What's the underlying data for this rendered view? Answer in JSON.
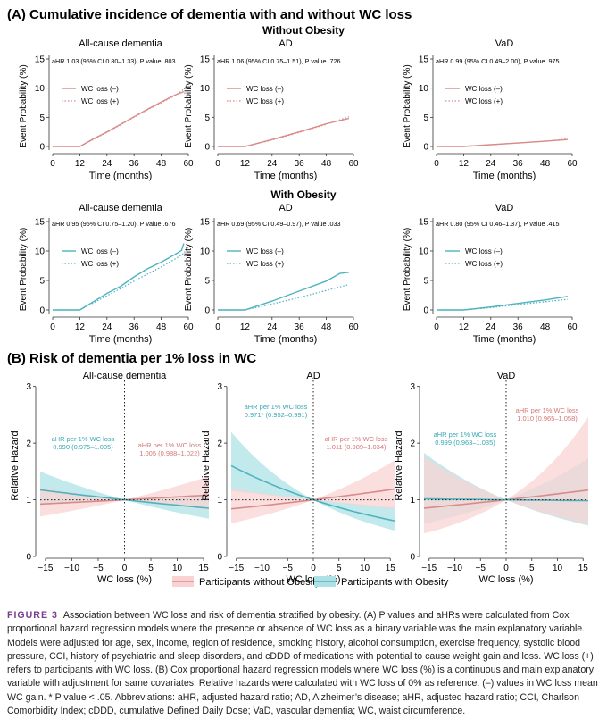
{
  "sectionA": {
    "title": "(A) Cumulative incidence of dementia with and without WC loss",
    "row1_title": "Without Obesity",
    "row2_title": "With Obesity",
    "ylabel": "Event Probability (%)",
    "xlabel": "Time (months)",
    "legend_neg": "WC loss (–)",
    "legend_pos": "WC loss (+)"
  },
  "sectionB": {
    "title": "(B) Risk of dementia per 1% loss in WC",
    "ylabel": "Relative Hazard",
    "xlabel": "WC loss (%)",
    "legend_no_obesity": "Participants without Obesity",
    "legend_obesity": "Participants with Obesity"
  },
  "colors": {
    "no_obesity": "#d98a8a",
    "obesity": "#4fb3bf",
    "no_obesity_band": "#f9d3d3",
    "obesity_band": "#aee1e6"
  },
  "chart_data": [
    {
      "type": "line",
      "row": "Without Obesity",
      "title": "All-cause dementia",
      "annotation": "aHR 1.03 (95% CI 0.80–1.33), P value .803",
      "x": [
        0,
        12,
        24,
        36,
        48,
        60
      ],
      "xlim": [
        0,
        60
      ],
      "ylim": [
        0,
        15
      ],
      "yticks": [
        0,
        5,
        10,
        15
      ],
      "series": [
        {
          "name": "WC loss (–)",
          "x": [
            0,
            12,
            18,
            24,
            30,
            36,
            42,
            48,
            54,
            58
          ],
          "values": [
            0,
            0,
            1.3,
            2.5,
            3.8,
            5.1,
            6.4,
            7.6,
            8.8,
            9.4
          ]
        },
        {
          "name": "WC loss (+)",
          "x": [
            0,
            12,
            18,
            24,
            30,
            36,
            42,
            48,
            54,
            58
          ],
          "values": [
            0,
            0,
            1.2,
            2.4,
            3.7,
            5.0,
            6.3,
            7.5,
            8.7,
            9.8
          ]
        }
      ]
    },
    {
      "type": "line",
      "row": "Without Obesity",
      "title": "AD",
      "annotation": "aHR 1.06 (95% CI 0.75–1.51), P value .726",
      "xlim": [
        0,
        60
      ],
      "ylim": [
        0,
        15
      ],
      "series": [
        {
          "name": "WC loss (–)",
          "x": [
            0,
            12,
            24,
            36,
            48,
            58
          ],
          "values": [
            0,
            0,
            1.2,
            2.5,
            3.9,
            4.8
          ]
        },
        {
          "name": "WC loss (+)",
          "x": [
            0,
            12,
            24,
            36,
            48,
            58
          ],
          "values": [
            0,
            0,
            1.1,
            2.4,
            3.8,
            5.1
          ]
        }
      ]
    },
    {
      "type": "line",
      "row": "Without Obesity",
      "title": "VaD",
      "annotation": "aHR 0.99 (95% CI 0.49–2.00), P value .975",
      "xlim": [
        0,
        60
      ],
      "ylim": [
        0,
        15
      ],
      "series": [
        {
          "name": "WC loss (–)",
          "x": [
            0,
            12,
            24,
            36,
            48,
            58
          ],
          "values": [
            0,
            0,
            0.3,
            0.6,
            0.9,
            1.2
          ]
        },
        {
          "name": "WC loss (+)",
          "x": [
            0,
            12,
            24,
            36,
            48,
            58
          ],
          "values": [
            0,
            0,
            0.3,
            0.6,
            0.9,
            1.3
          ]
        }
      ]
    },
    {
      "type": "line",
      "row": "With Obesity",
      "title": "All-cause dementia",
      "annotation": "aHR 0.95 (95% CI 0.75–1.20), P value .676",
      "xlim": [
        0,
        60
      ],
      "ylim": [
        0,
        15
      ],
      "series": [
        {
          "name": "WC loss (–)",
          "x": [
            0,
            12,
            18,
            24,
            30,
            36,
            42,
            48,
            54,
            57,
            58
          ],
          "values": [
            0,
            0,
            1.4,
            2.8,
            4.0,
            5.6,
            7.0,
            8.1,
            9.4,
            10.1,
            11.3
          ]
        },
        {
          "name": "WC loss (+)",
          "x": [
            0,
            12,
            18,
            24,
            30,
            36,
            42,
            48,
            54,
            58
          ],
          "values": [
            0,
            0,
            1.2,
            2.4,
            3.6,
            4.9,
            6.1,
            7.3,
            8.6,
            9.6
          ]
        }
      ]
    },
    {
      "type": "line",
      "row": "With Obesity",
      "title": "AD",
      "annotation": "aHR 0.69 (95% CI 0.49–0.97), P value .033",
      "xlim": [
        0,
        60
      ],
      "ylim": [
        0,
        15
      ],
      "series": [
        {
          "name": "WC loss (–)",
          "x": [
            0,
            12,
            24,
            36,
            48,
            54,
            58
          ],
          "values": [
            0,
            0,
            1.5,
            3.2,
            4.9,
            6.2,
            6.4
          ]
        },
        {
          "name": "WC loss (+)",
          "x": [
            0,
            12,
            24,
            36,
            48,
            58
          ],
          "values": [
            0,
            0,
            1.0,
            2.1,
            3.3,
            4.3
          ]
        }
      ]
    },
    {
      "type": "line",
      "row": "With Obesity",
      "title": "VaD",
      "annotation": "aHR 0.80 (95% CI 0.46–1.37), P value .415",
      "xlim": [
        0,
        60
      ],
      "ylim": [
        0,
        15
      ],
      "series": [
        {
          "name": "WC loss (–)",
          "x": [
            0,
            12,
            24,
            36,
            48,
            58
          ],
          "values": [
            0,
            0,
            0.5,
            1.1,
            1.7,
            2.3
          ]
        },
        {
          "name": "WC loss (+)",
          "x": [
            0,
            12,
            24,
            36,
            48,
            58
          ],
          "values": [
            0,
            0,
            0.4,
            0.9,
            1.4,
            1.8
          ]
        }
      ]
    },
    {
      "type": "line",
      "title": "All-cause dementia",
      "xlim": [
        -16,
        16
      ],
      "ylim": [
        0,
        3.2
      ],
      "xticks": [
        -15,
        -10,
        -5,
        0,
        5,
        10,
        15
      ],
      "yticks": [
        0,
        1,
        2,
        3
      ],
      "annotations": [
        {
          "series": "obesity",
          "text": "aHR per 1% WC loss",
          "ci": "0.990 (0.975–1.005)"
        },
        {
          "series": "no_obesity",
          "text": "aHR per 1% WC loss",
          "ci": "1.005 (0.988–1.022)"
        }
      ],
      "series": [
        {
          "name": "Participants without Obesity",
          "hr_per_1pct": 1.005,
          "ci": [
            0.988,
            1.022
          ]
        },
        {
          "name": "Participants with Obesity",
          "hr_per_1pct": 0.99,
          "ci": [
            0.975,
            1.005
          ]
        }
      ]
    },
    {
      "type": "line",
      "title": "AD",
      "xlim": [
        -16,
        16
      ],
      "ylim": [
        0,
        3.2
      ],
      "annotations": [
        {
          "series": "obesity",
          "text": "aHR per 1% WC loss",
          "ci": "0.971* (0.952–0.991)"
        },
        {
          "series": "no_obesity",
          "text": "aHR per 1% WC loss",
          "ci": "1.011 (0.989–1.034)"
        }
      ],
      "series": [
        {
          "name": "Participants without Obesity",
          "hr_per_1pct": 1.011,
          "ci": [
            0.989,
            1.034
          ]
        },
        {
          "name": "Participants with Obesity",
          "hr_per_1pct": 0.971,
          "ci": [
            0.952,
            0.991
          ]
        }
      ]
    },
    {
      "type": "line",
      "title": "VaD",
      "xlim": [
        -16,
        16
      ],
      "ylim": [
        0,
        3.2
      ],
      "annotations": [
        {
          "series": "obesity",
          "text": "aHR per 1% WC loss",
          "ci": "0.999 (0.963–1.035)"
        },
        {
          "series": "no_obesity",
          "text": "aHR per 1% WC loss",
          "ci": "1.010 (0.965–1.058)"
        }
      ],
      "series": [
        {
          "name": "Participants without Obesity",
          "hr_per_1pct": 1.01,
          "ci": [
            0.965,
            1.058
          ]
        },
        {
          "name": "Participants with Obesity",
          "hr_per_1pct": 0.999,
          "ci": [
            0.963,
            1.035
          ]
        }
      ]
    }
  ],
  "caption": {
    "label": "FIGURE 3",
    "text": "Association between WC loss and risk of dementia stratified by obesity. (A) P values and aHRs were calculated from Cox proportional hazard regression models where the presence or absence of WC loss as a binary variable was the main explanatory variable. Models were adjusted for age, sex, income, region of residence, smoking history, alcohol consumption, exercise frequency, systolic blood pressure, CCI, history of psychiatric and sleep disorders, and cDDD of medications with potential to cause weight gain and loss. WC loss (+) refers to participants with WC loss. (B) Cox proportional hazard regression models where WC loss (%) is a continuous and main explanatory variable with adjustment for same covariates. Relative hazards were calculated with WC loss of 0% as reference. (–) values in WC loss mean WC gain. * P value < .05. Abbreviations: aHR, adjusted hazard ratio; AD, Alzheimer’s disease; aHR, adjusted hazard ratio; CCI, Charlson Comorbidity Index; cDDD, cumulative Defined Daily Dose; VaD, vascular dementia; WC, waist circumference."
  }
}
